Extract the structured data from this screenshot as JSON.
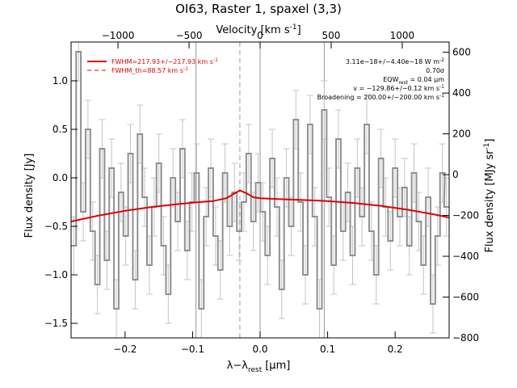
{
  "chart_data": {
    "type": "line",
    "title": "OI63, Raster 1, spaxel (3,3)",
    "xlabel": "λ−λ",
    "xlabel_sub": "rest",
    "xlabel_unit": "[μm]",
    "ylabel": "Flux density [Jy]",
    "y2label": "Flux density [MJy sr",
    "y2label_sup": "-1",
    "y2label_end": "]",
    "top_label": "Velocity [km s",
    "top_label_sup": "-1",
    "top_label_end": "]",
    "xlim": [
      -0.28,
      0.28
    ],
    "ylim": [
      -1.65,
      1.4
    ],
    "y2lim": [
      -800,
      650
    ],
    "top_xlim": [
      -1330,
      1330
    ],
    "x_ticks": [
      -0.2,
      -0.1,
      0.0,
      0.1,
      0.2
    ],
    "x_tick_labels": [
      "−0.2",
      "−0.1",
      "0.0",
      "0.1",
      "0.2"
    ],
    "y_ticks": [
      -1.5,
      -1.0,
      -0.5,
      0.0,
      0.5,
      1.0
    ],
    "y_tick_labels": [
      "−1.5",
      "−1.0",
      "−0.5",
      "0.0",
      "0.5",
      "1.0"
    ],
    "y2_ticks": [
      -800,
      -600,
      -400,
      -200,
      0,
      200,
      400,
      600
    ],
    "y2_tick_labels": [
      "−800",
      "−600",
      "−400",
      "−200",
      "0",
      "200",
      "400",
      "600"
    ],
    "top_ticks": [
      -1000,
      -500,
      0,
      500,
      1000
    ],
    "top_tick_labels": [
      "−1000",
      "−500",
      "0",
      "500",
      "1000"
    ],
    "vlines_solid": [
      -0.095,
      0.0,
      0.095
    ],
    "vline_dashed": -0.03,
    "legend": {
      "placement": "top-left",
      "entries": [
        {
          "label": "FWHM=217.93+/−217.93 km s",
          "sup": "-1",
          "style": "solid",
          "color": "#e00000"
        },
        {
          "label": "FWHM_th=88.57 km s",
          "sup": "-1",
          "style": "dashed",
          "color": "#e00000"
        }
      ]
    },
    "annotations": {
      "line1": "3.11e−18+/−4.40e−18 W m",
      "line1_sup": "-2",
      "line2": "0.70σ",
      "line3": "EQW",
      "line3_sub": "rest",
      "line3_end": " = 0.04 μm",
      "line4": "v = −129.86+/−0.12 km s",
      "line4_sup": "-1",
      "line5": "Broadening = 200.00+/−200.00 km s",
      "line5_sup": "-1"
    },
    "series": [
      {
        "name": "spectrum",
        "style": "steps",
        "color": "#909090",
        "x": [
          -0.276,
          -0.269,
          -0.262,
          -0.255,
          -0.248,
          -0.241,
          -0.234,
          -0.227,
          -0.22,
          -0.213,
          -0.206,
          -0.199,
          -0.192,
          -0.185,
          -0.178,
          -0.171,
          -0.164,
          -0.157,
          -0.15,
          -0.143,
          -0.136,
          -0.129,
          -0.122,
          -0.115,
          -0.108,
          -0.101,
          -0.094,
          -0.087,
          -0.08,
          -0.073,
          -0.066,
          -0.059,
          -0.052,
          -0.045,
          -0.038,
          -0.031,
          -0.024,
          -0.017,
          -0.01,
          -0.003,
          0.004,
          0.011,
          0.018,
          0.025,
          0.032,
          0.039,
          0.046,
          0.053,
          0.06,
          0.067,
          0.074,
          0.081,
          0.088,
          0.095,
          0.102,
          0.109,
          0.116,
          0.123,
          0.13,
          0.137,
          0.144,
          0.151,
          0.158,
          0.165,
          0.172,
          0.179,
          0.186,
          0.193,
          0.2,
          0.207,
          0.214,
          0.221,
          0.228,
          0.235,
          0.242,
          0.249,
          0.256,
          0.263,
          0.27,
          0.276
        ],
        "y": [
          -0.7,
          1.3,
          -0.35,
          0.5,
          -0.55,
          -1.1,
          0.3,
          -0.85,
          0.1,
          -1.35,
          -0.15,
          -0.6,
          0.25,
          -1.05,
          0.45,
          -0.2,
          -0.9,
          -0.3,
          0.15,
          -0.7,
          -1.2,
          0.0,
          -0.45,
          0.3,
          -0.75,
          -0.25,
          0.05,
          -1.35,
          -0.4,
          0.1,
          -0.6,
          -0.95,
          0.05,
          -0.5,
          -0.15,
          -0.55,
          -0.25,
          0.25,
          -0.45,
          -0.05,
          -0.35,
          -0.8,
          0.2,
          -0.3,
          -1.15,
          0.0,
          -0.5,
          0.6,
          -0.25,
          -1.0,
          0.55,
          -0.4,
          -1.35,
          0.7,
          -0.2,
          -0.9,
          0.4,
          -0.55,
          -0.15,
          -0.8,
          0.1,
          -0.4,
          0.55,
          -0.55,
          -1.0,
          0.2,
          -0.3,
          -0.65,
          0.1,
          -0.4,
          -0.1,
          -0.7,
          0.05,
          -0.45,
          -0.9,
          -0.2,
          -1.3,
          -0.6,
          0.05,
          -0.3
        ],
        "err": 0.3
      },
      {
        "name": "FWHM=217.93+/−217.93 km s-1",
        "style": "solid",
        "color": "#e00000",
        "x": [
          -0.28,
          -0.24,
          -0.2,
          -0.16,
          -0.12,
          -0.09,
          -0.07,
          -0.05,
          -0.04,
          -0.03,
          -0.02,
          -0.01,
          0.0,
          0.03,
          0.07,
          0.1,
          0.14,
          0.18,
          0.22,
          0.26,
          0.28
        ],
        "y": [
          -0.45,
          -0.39,
          -0.34,
          -0.3,
          -0.27,
          -0.25,
          -0.24,
          -0.21,
          -0.17,
          -0.13,
          -0.16,
          -0.2,
          -0.21,
          -0.22,
          -0.23,
          -0.24,
          -0.26,
          -0.29,
          -0.33,
          -0.38,
          -0.41
        ]
      },
      {
        "name": "FWHM_th=88.57 km s-1",
        "style": "dashed",
        "color": "#e00000",
        "x": [
          -0.07,
          -0.05,
          -0.04,
          -0.03,
          -0.02,
          -0.01,
          0.0
        ],
        "y": [
          -0.24,
          -0.21,
          -0.17,
          -0.13,
          -0.16,
          -0.2,
          -0.21
        ]
      }
    ]
  }
}
